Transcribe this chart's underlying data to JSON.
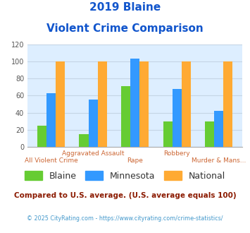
{
  "title_line1": "2019 Blaine",
  "title_line2": "Violent Crime Comparison",
  "blaine_values": [
    25,
    15,
    71,
    30,
    30
  ],
  "minnesota_values": [
    63,
    55,
    103,
    68,
    42
  ],
  "national_values": [
    100,
    100,
    100,
    100,
    100
  ],
  "blaine_color": "#66cc33",
  "minnesota_color": "#3399ff",
  "national_color": "#ffaa33",
  "ylim": [
    0,
    120
  ],
  "yticks": [
    0,
    20,
    40,
    60,
    80,
    100,
    120
  ],
  "title_color": "#1155cc",
  "plot_bg_color": "#ddeeff",
  "grid_color": "#c5d5e5",
  "subtitle_color": "#8B1A00",
  "footnote_color": "#4499cc",
  "subtitle_text": "Compared to U.S. average. (U.S. average equals 100)",
  "footnote_text": "© 2025 CityRating.com - https://www.cityrating.com/crime-statistics/",
  "legend_labels": [
    "Blaine",
    "Minnesota",
    "National"
  ],
  "xtick_line1": [
    "",
    "Aggravated Assault",
    "",
    "Robbery",
    ""
  ],
  "xtick_line2": [
    "All Violent Crime",
    "",
    "Rape",
    "",
    "Murder & Mans..."
  ],
  "xtick_color": "#cc6633"
}
